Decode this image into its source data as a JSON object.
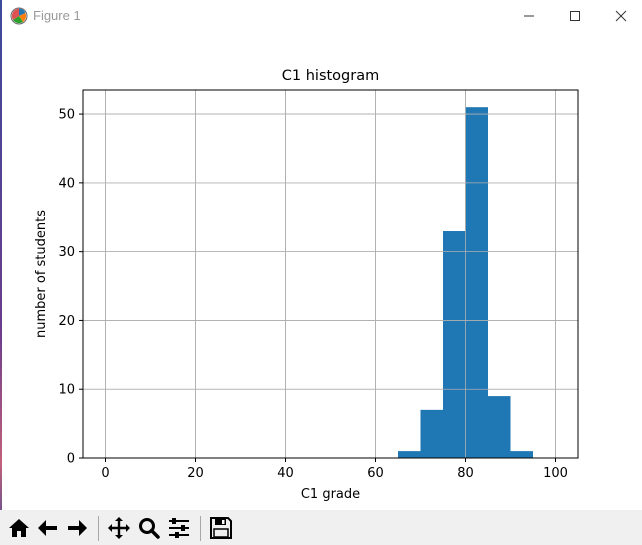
{
  "window": {
    "title": "Figure 1",
    "icon": "matplotlib-figure-icon",
    "controls": [
      "minimize-icon",
      "maximize-icon",
      "close-icon"
    ]
  },
  "chart_data": {
    "type": "bar",
    "title": "C1 histogram",
    "xlabel": "C1 grade",
    "ylabel": "number of students",
    "xlim": [
      -5,
      105
    ],
    "ylim": [
      0,
      53.5
    ],
    "xticks": [
      0,
      20,
      40,
      60,
      80,
      100
    ],
    "yticks": [
      0,
      10,
      20,
      30,
      40,
      50
    ],
    "grid": true,
    "bar_color": "#1f77b4",
    "bins": [
      {
        "x0": 65,
        "x1": 70,
        "count": 1
      },
      {
        "x0": 70,
        "x1": 75,
        "count": 7
      },
      {
        "x0": 75,
        "x1": 80,
        "count": 33
      },
      {
        "x0": 80,
        "x1": 85,
        "count": 51
      },
      {
        "x0": 85,
        "x1": 90,
        "count": 9
      },
      {
        "x0": 90,
        "x1": 95,
        "count": 1
      }
    ]
  },
  "toolbar": {
    "buttons": [
      {
        "name": "home-icon",
        "tooltip": "Reset original view"
      },
      {
        "name": "back-arrow-icon",
        "tooltip": "Back to previous view"
      },
      {
        "name": "forward-arrow-icon",
        "tooltip": "Forward to next view"
      },
      {
        "name": "pan-icon",
        "tooltip": "Pan axes"
      },
      {
        "name": "zoom-icon",
        "tooltip": "Zoom to rectangle"
      },
      {
        "name": "subplots-config-icon",
        "tooltip": "Configure subplots"
      },
      {
        "name": "save-icon",
        "tooltip": "Save the figure"
      }
    ],
    "message": ""
  }
}
